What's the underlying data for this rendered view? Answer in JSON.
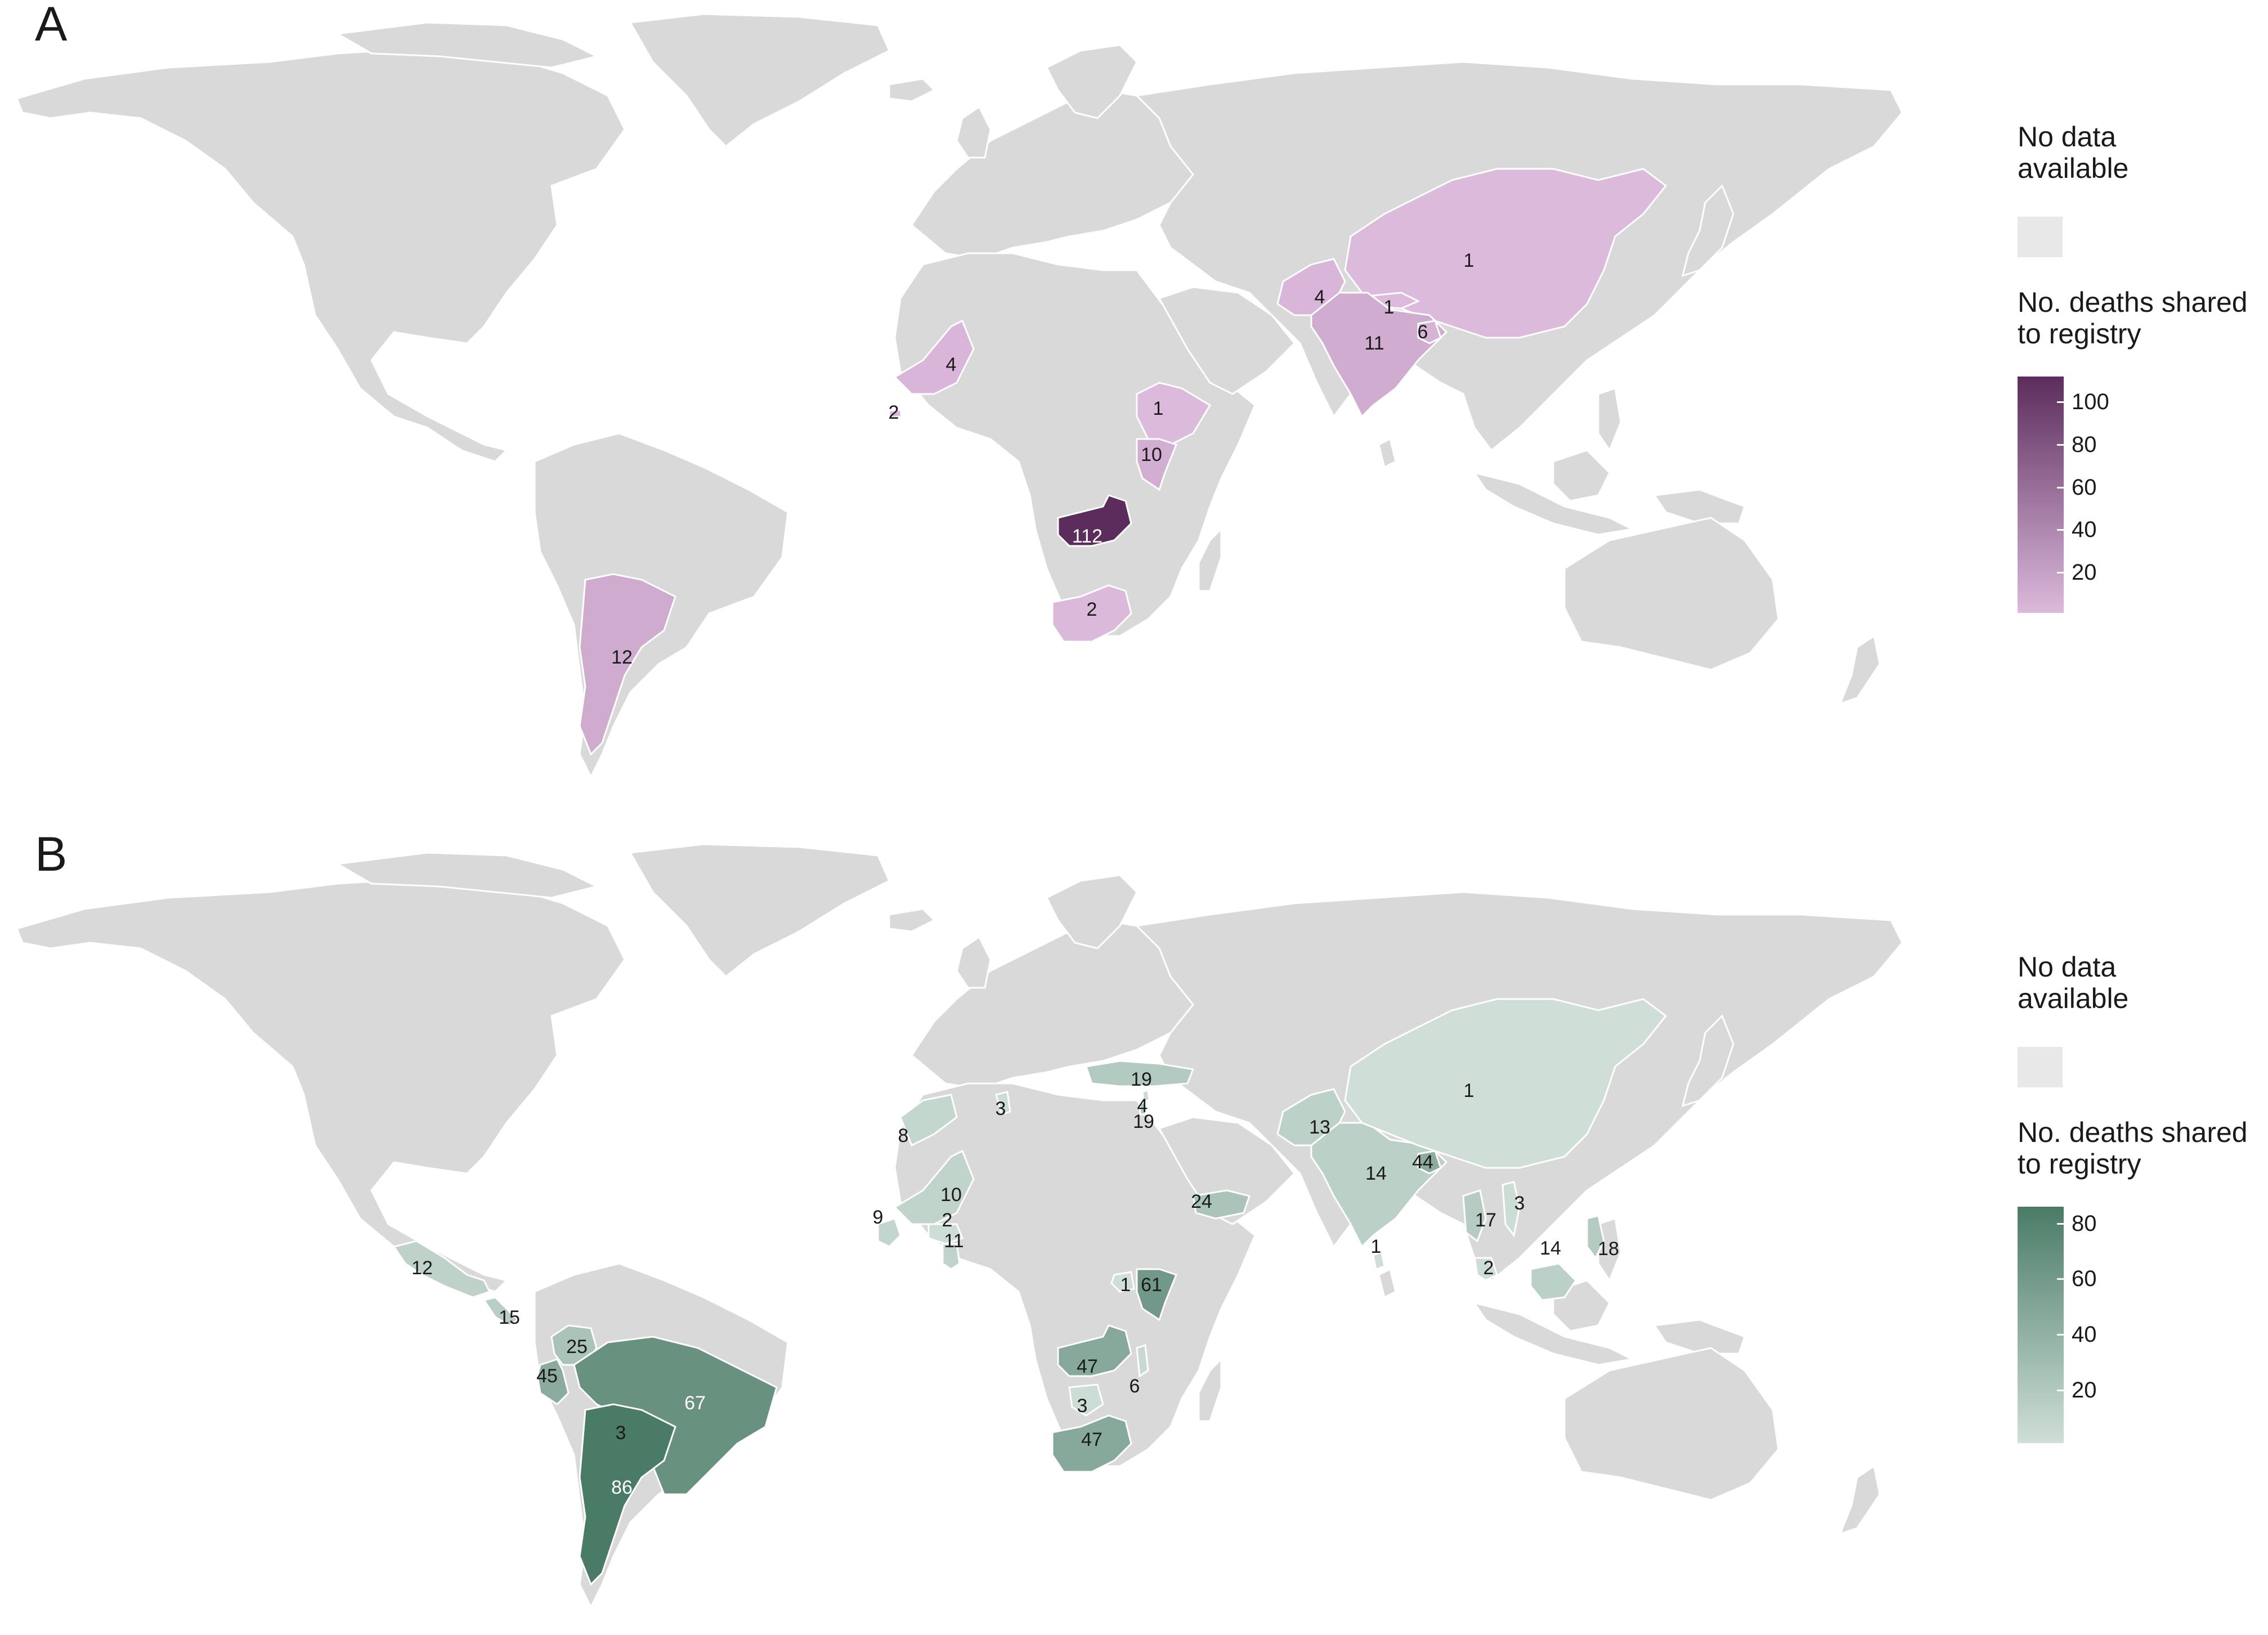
{
  "panels": [
    {
      "letter": "A",
      "legend": {
        "nodata_title": "No data\navailable",
        "scale_title": "No. deaths shared\nto registry",
        "ticks": [
          "100",
          "80",
          "60",
          "40",
          "20"
        ],
        "tick_values": [
          100,
          80,
          60,
          40,
          20
        ],
        "range": [
          1,
          112
        ],
        "color_low": "#dcbadc",
        "color_high": "#5b2c5c"
      },
      "regions": [
        {
          "name": "China",
          "value": 1
        },
        {
          "name": "Pakistan",
          "value": 4
        },
        {
          "name": "Nepal",
          "value": 1
        },
        {
          "name": "India",
          "value": 11
        },
        {
          "name": "Bangladesh",
          "value": 6
        },
        {
          "name": "Mali",
          "value": 4
        },
        {
          "name": "Gambia",
          "value": 2
        },
        {
          "name": "Ethiopia",
          "value": 1
        },
        {
          "name": "Kenya",
          "value": 10
        },
        {
          "name": "Zambia",
          "value": 112
        },
        {
          "name": "South Africa",
          "value": 2
        },
        {
          "name": "Argentina",
          "value": 12
        }
      ]
    },
    {
      "letter": "B",
      "legend": {
        "nodata_title": "No data\navailable",
        "scale_title": "No. deaths shared\nto registry",
        "ticks": [
          "80",
          "60",
          "40",
          "20"
        ],
        "tick_values": [
          80,
          60,
          40,
          20
        ],
        "range": [
          1,
          86
        ],
        "color_low": "#cfdfd8",
        "color_high": "#4a7b67"
      },
      "regions": [
        {
          "name": "Mexico",
          "value": 12
        },
        {
          "name": "Central America",
          "value": 15
        },
        {
          "name": "Colombia",
          "value": 25
        },
        {
          "name": "Peru",
          "value": 45
        },
        {
          "name": "Brazil",
          "value": 67
        },
        {
          "name": "Bolivia",
          "value": 3
        },
        {
          "name": "Argentina",
          "value": 86
        },
        {
          "name": "Morocco",
          "value": 8
        },
        {
          "name": "Tunisia",
          "value": 3
        },
        {
          "name": "Mali",
          "value": 10
        },
        {
          "name": "Guinea",
          "value": 9
        },
        {
          "name": "Burkina Faso",
          "value": 2
        },
        {
          "name": "Ghana",
          "value": 11
        },
        {
          "name": "Turkey",
          "value": 19
        },
        {
          "name": "Lebanon",
          "value": 4
        },
        {
          "name": "Israel",
          "value": 19
        },
        {
          "name": "Yemen",
          "value": 24
        },
        {
          "name": "Uganda",
          "value": 1
        },
        {
          "name": "Kenya",
          "value": 61
        },
        {
          "name": "Zambia",
          "value": 47
        },
        {
          "name": "Malawi",
          "value": 6
        },
        {
          "name": "Botswana",
          "value": 3
        },
        {
          "name": "South Africa",
          "value": 47
        },
        {
          "name": "Pakistan",
          "value": 13
        },
        {
          "name": "India",
          "value": 14
        },
        {
          "name": "Bangladesh",
          "value": 44
        },
        {
          "name": "Sri Lanka",
          "value": 1
        },
        {
          "name": "China",
          "value": 1
        },
        {
          "name": "Thailand",
          "value": 17
        },
        {
          "name": "Vietnam",
          "value": 3
        },
        {
          "name": "Malaysia",
          "value": 2
        },
        {
          "name": "Borneo",
          "value": 14
        },
        {
          "name": "Philippines",
          "value": 18
        }
      ]
    }
  ],
  "colors": {
    "land": "#d9d9d9",
    "border": "#ffffff",
    "nodata": "#e8e8e8",
    "background": "#ffffff"
  }
}
